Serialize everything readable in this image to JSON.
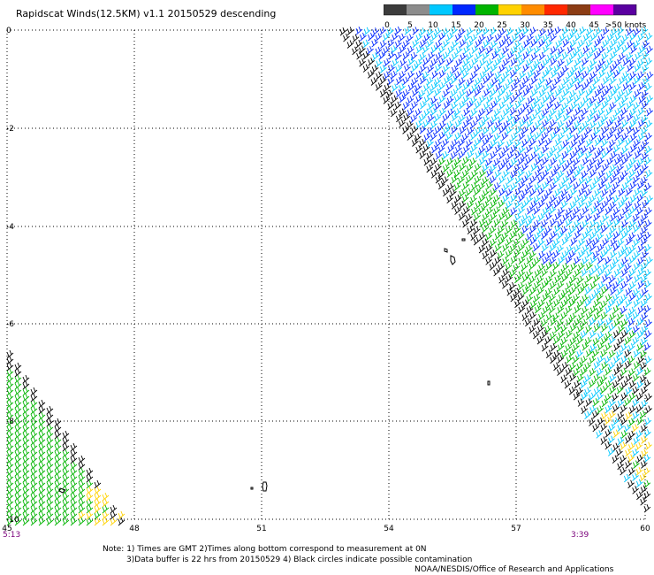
{
  "header": {
    "title": "Rapidscat Winds(12.5KM) v1.1 20150529 descending"
  },
  "legend": {
    "labels": [
      "0",
      "5",
      "10",
      "15",
      "20",
      "25",
      "30",
      "35",
      "40",
      "45",
      ">50 knots"
    ],
    "colors": [
      "#3c3c3c",
      "#8c8c8c",
      "#00c8ff",
      "#0028ff",
      "#00b400",
      "#ffd200",
      "#ff8c00",
      "#ff2800",
      "#8c3c14",
      "#ff00ff",
      "#5a00a0"
    ]
  },
  "map": {
    "x_ticks": [
      "45",
      "48",
      "51",
      "54",
      "57",
      "60"
    ],
    "y_ticks": [
      "0",
      "-2",
      "-4",
      "-6",
      "-8",
      "-10"
    ],
    "times": [
      "5:13",
      "3:39"
    ],
    "barb_colors": {
      "calm": "#000000",
      "light": "#00c8ff",
      "moderate": "#0028ff",
      "fresh": "#00b400",
      "strong": "#ffd200",
      "stronger": "#ff8c00",
      "gale": "#ff2800"
    }
  },
  "footer": {
    "note1": "Note: 1) Times are GMT 2)Times along bottom correspond to measurement at 0N",
    "note2": "3)Data buffer is 22 hrs from 20150529 4) Black circles indicate possible contamination",
    "credit": "NOAA/NESDIS/Office of Research and Applications"
  }
}
